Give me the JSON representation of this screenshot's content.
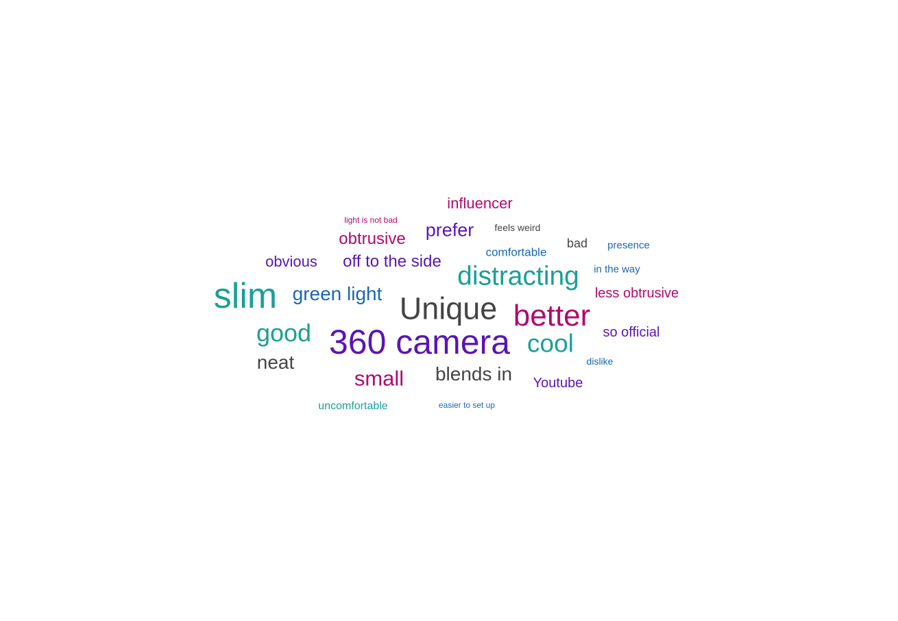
{
  "palette": {
    "teal": "#1a9f98",
    "gray": "#444444",
    "purple": "#5a15b5",
    "magenta": "#b00a70",
    "blue": "#1a66b0"
  },
  "words": [
    {
      "text": "360 camera",
      "color": "purple"
    },
    {
      "text": "Unique",
      "color": "gray"
    },
    {
      "text": "slim",
      "color": "teal"
    },
    {
      "text": "better",
      "color": "magenta"
    },
    {
      "text": "distracting",
      "color": "teal"
    },
    {
      "text": "cool",
      "color": "teal"
    },
    {
      "text": "good",
      "color": "teal"
    },
    {
      "text": "small",
      "color": "magenta"
    },
    {
      "text": "green light",
      "color": "blue"
    },
    {
      "text": "blends in",
      "color": "gray"
    },
    {
      "text": "neat",
      "color": "gray"
    },
    {
      "text": "prefer",
      "color": "purple"
    },
    {
      "text": "obtrusive",
      "color": "magenta"
    },
    {
      "text": "off to the side",
      "color": "purple"
    },
    {
      "text": "influencer",
      "color": "magenta"
    },
    {
      "text": "obvious",
      "color": "purple"
    },
    {
      "text": "less obtrusive",
      "color": "magenta"
    },
    {
      "text": "so official",
      "color": "purple"
    },
    {
      "text": "Youtube",
      "color": "purple"
    },
    {
      "text": "comfortable",
      "color": "blue"
    },
    {
      "text": "bad",
      "color": "gray"
    },
    {
      "text": "uncomfortable",
      "color": "teal"
    },
    {
      "text": "presence",
      "color": "blue"
    },
    {
      "text": "in the way",
      "color": "blue"
    },
    {
      "text": "feels weird",
      "color": "gray"
    },
    {
      "text": "dislike",
      "color": "blue"
    },
    {
      "text": "light is not bad",
      "color": "magenta"
    },
    {
      "text": "easier to set up",
      "color": "blue"
    }
  ]
}
